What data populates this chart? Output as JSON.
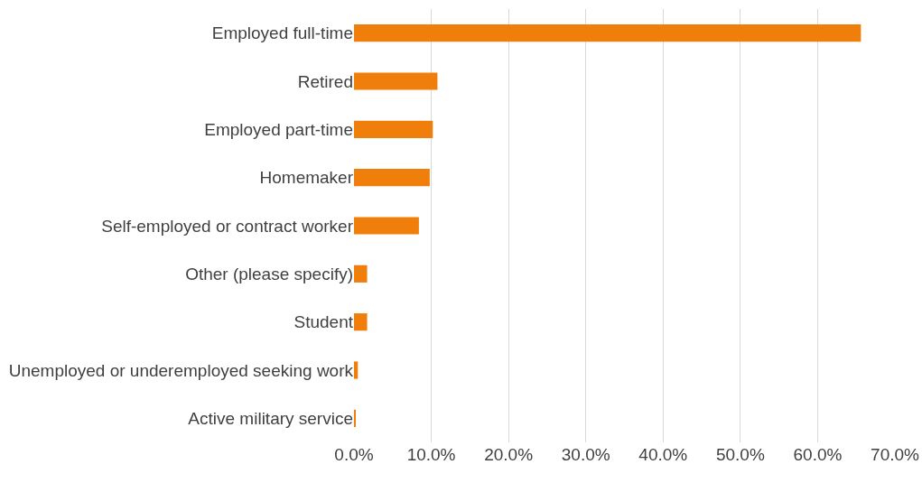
{
  "chart_data": {
    "type": "bar",
    "orientation": "horizontal",
    "categories": [
      "Employed full-time",
      "Retired",
      "Employed part-time",
      "Homemaker",
      "Self-employed or contract worker",
      "Other (please specify)",
      "Student",
      "Unemployed or underemployed seeking work",
      "Active military service"
    ],
    "values": [
      65.6,
      10.8,
      10.2,
      9.8,
      8.4,
      1.7,
      1.7,
      0.5,
      0.2
    ],
    "color": "#ef7f0a",
    "xlim": [
      0,
      70
    ],
    "xticks": [
      {
        "value": 0,
        "label": "0.0%"
      },
      {
        "value": 10,
        "label": "10.0%"
      },
      {
        "value": 20,
        "label": "20.0%"
      },
      {
        "value": 30,
        "label": "30.0%"
      },
      {
        "value": 40,
        "label": "40.0%"
      },
      {
        "value": 50,
        "label": "50.0%"
      },
      {
        "value": 60,
        "label": "60.0%"
      },
      {
        "value": 70,
        "label": "70.0%"
      }
    ],
    "grid": "x"
  }
}
